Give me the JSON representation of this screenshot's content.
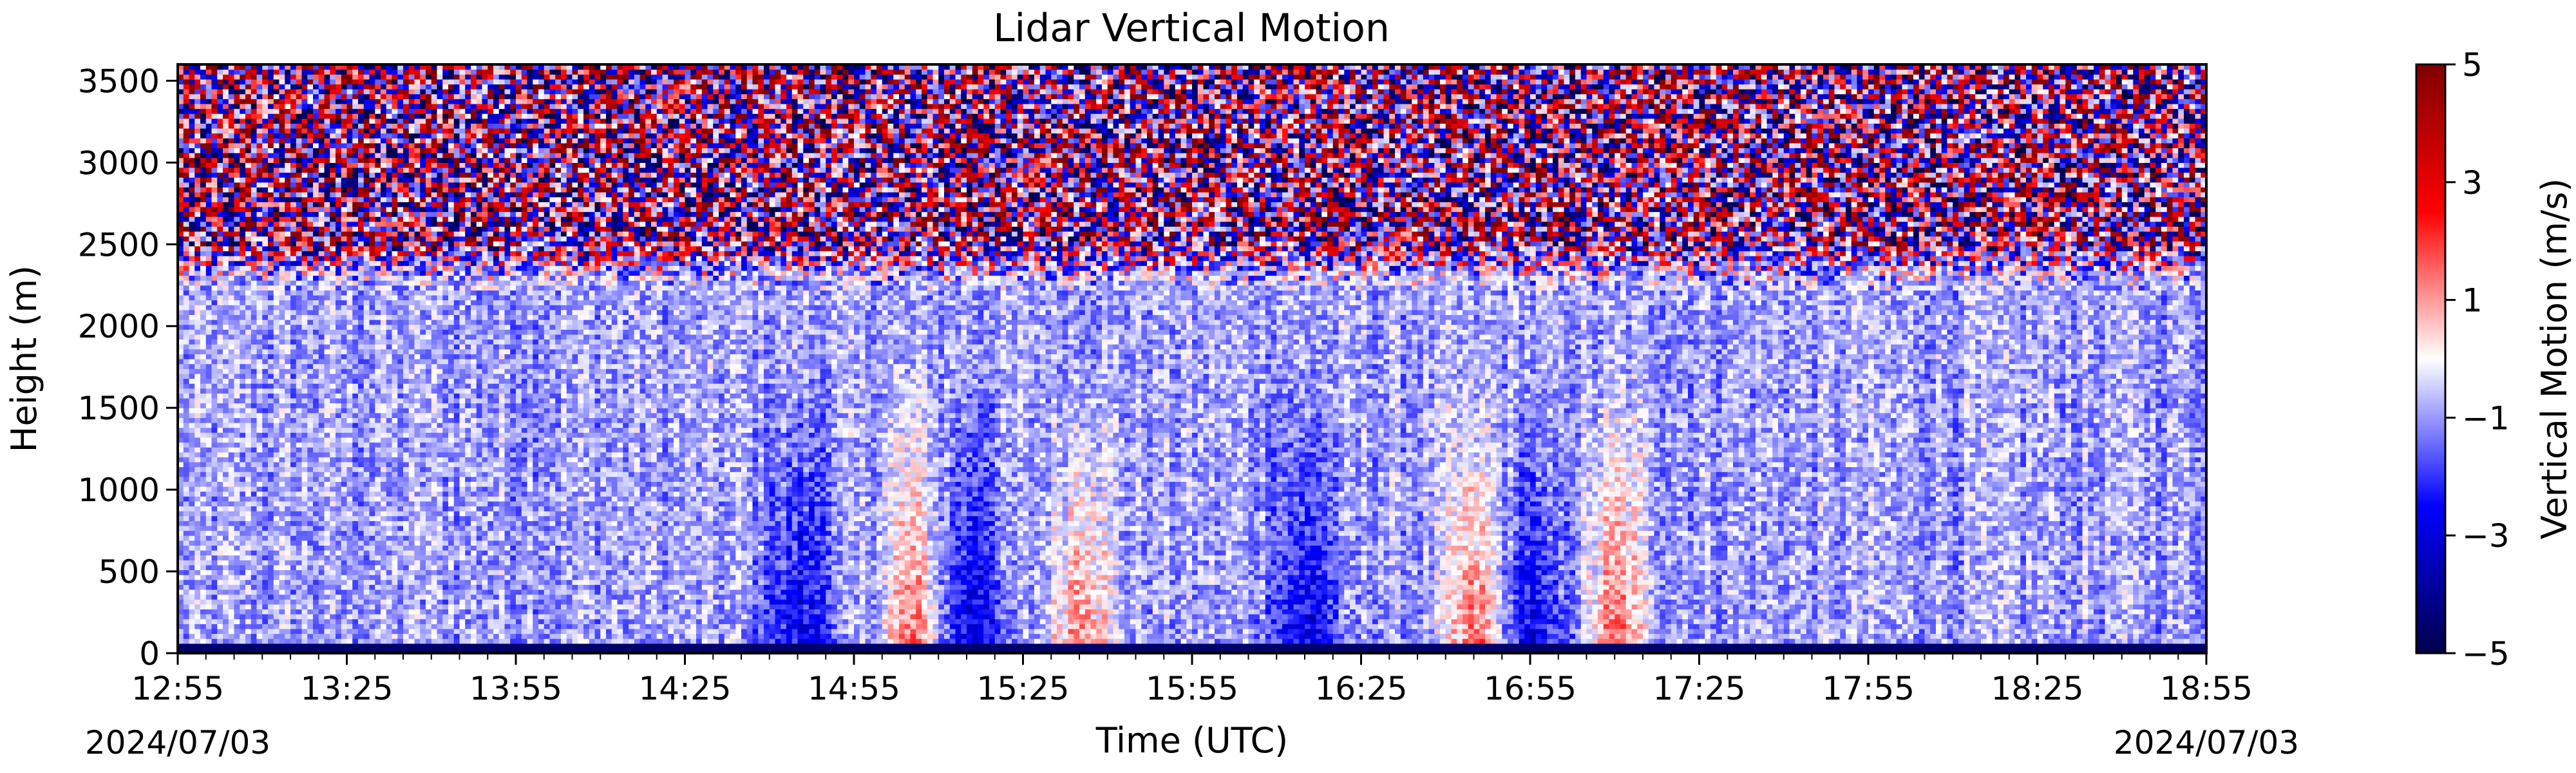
{
  "chart_data": {
    "type": "heatmap",
    "title": "Lidar Vertical Motion",
    "xlabel": "Time (UTC)",
    "ylabel": "Height (m)",
    "x_start_date_label": "2024/07/03",
    "x_end_date_label": "2024/07/03",
    "x_ticks": [
      "12:55",
      "13:25",
      "13:55",
      "14:25",
      "14:55",
      "15:25",
      "15:55",
      "16:25",
      "16:55",
      "17:25",
      "17:55",
      "18:25",
      "18:55"
    ],
    "xlim": [
      "12:55",
      "18:55"
    ],
    "y_ticks": [
      0,
      500,
      1000,
      1500,
      2000,
      2500,
      3000,
      3500
    ],
    "ylim": [
      0,
      3600
    ],
    "colorbar": {
      "label": "Vertical Motion (m/s)",
      "ticks": [
        -5,
        -3,
        -1,
        1,
        3,
        5
      ],
      "tick_labels": [
        "−5",
        "−3",
        "−1",
        "1",
        "3",
        "5"
      ],
      "range": [
        -5,
        5
      ],
      "colormap": "seismic",
      "colors": [
        "#00004c",
        "#0000ff",
        "#ffffff",
        "#ff0000",
        "#800000"
      ]
    },
    "time_resolution_min": 1,
    "height_resolution_m": 30,
    "features": {
      "noise_above_height_m": 2200,
      "ground_strip_height_m": 50,
      "updraft_times": [
        "15:05",
        "15:35",
        "16:45",
        "17:10"
      ],
      "downdraft_times": [
        "14:45",
        "15:15",
        "16:15",
        "16:55"
      ]
    },
    "grid": false,
    "legend": "colorbar-right"
  }
}
